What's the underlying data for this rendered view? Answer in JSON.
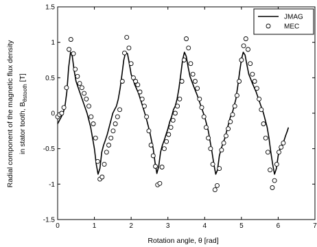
{
  "chart_data": {
    "type": "line",
    "xlabel": "Rotation angle, θ [rad]",
    "ylabel_line1": "Radial component of the magnetic flux density",
    "ylabel_line2_prefix": "in stator tooth, B",
    "ylabel_subscript": "θstooth",
    "ylabel_suffix": " [T]",
    "xlim": [
      0,
      7
    ],
    "ylim": [
      -1.5,
      1.5
    ],
    "xticks": [
      0,
      1,
      2,
      3,
      4,
      5,
      6,
      7
    ],
    "yticks": [
      -1.5,
      -1,
      -0.5,
      0,
      0.5,
      1,
      1.5
    ],
    "xtick_labels": [
      "0",
      "1",
      "2",
      "3",
      "4",
      "5",
      "6",
      "7"
    ],
    "ytick_labels": [
      "-1.5",
      "-1",
      "-0.5",
      "0",
      "0.5",
      "1",
      "1.5"
    ],
    "grid": false,
    "legend_position": "top-right",
    "series": [
      {
        "name": "JMAG",
        "style": "solid-line",
        "color": "#000000",
        "x": [
          0,
          0.05,
          0.1,
          0.15,
          0.2,
          0.25,
          0.3,
          0.35,
          0.4,
          0.45,
          0.5,
          0.6,
          0.7,
          0.8,
          0.9,
          1.0,
          1.05,
          1.1,
          1.15,
          1.2,
          1.25,
          1.3,
          1.35,
          1.4,
          1.45,
          1.5,
          1.55,
          1.6,
          1.65,
          1.7,
          1.75,
          1.8,
          1.85,
          1.9,
          1.95,
          2.0,
          2.05,
          2.1,
          2.2,
          2.3,
          2.4,
          2.5,
          2.6,
          2.65,
          2.7,
          2.75,
          2.8,
          2.85,
          2.9,
          2.95,
          3.0,
          3.05,
          3.1,
          3.15,
          3.2,
          3.25,
          3.3,
          3.35,
          3.4,
          3.45,
          3.5,
          3.55,
          3.6,
          3.7,
          3.8,
          3.9,
          4.0,
          4.1,
          4.15,
          4.2,
          4.25,
          4.3,
          4.35,
          4.4,
          4.45,
          4.5,
          4.55,
          4.6,
          4.65,
          4.7,
          4.75,
          4.8,
          4.85,
          4.9,
          4.95,
          5.0,
          5.05,
          5.1,
          5.15,
          5.2,
          5.3,
          5.4,
          5.5,
          5.6,
          5.7,
          5.75,
          5.8,
          5.85,
          5.9,
          5.95,
          6.0,
          6.05,
          6.1,
          6.15,
          6.2,
          6.25,
          6.28
        ],
        "y": [
          -0.15,
          -0.1,
          -0.05,
          0.0,
          0.1,
          0.3,
          0.65,
          0.86,
          0.8,
          0.6,
          0.45,
          0.3,
          0.15,
          0.0,
          -0.2,
          -0.5,
          -0.72,
          -0.86,
          -0.78,
          -0.55,
          -0.45,
          -0.38,
          -0.3,
          -0.2,
          -0.1,
          0.0,
          0.05,
          0.1,
          0.2,
          0.35,
          0.55,
          0.75,
          0.86,
          0.84,
          0.7,
          0.55,
          0.48,
          0.4,
          0.28,
          0.12,
          -0.05,
          -0.25,
          -0.5,
          -0.7,
          -0.85,
          -0.75,
          -0.55,
          -0.45,
          -0.38,
          -0.3,
          -0.22,
          -0.12,
          -0.05,
          0.05,
          0.1,
          0.2,
          0.35,
          0.55,
          0.75,
          0.86,
          0.8,
          0.65,
          0.52,
          0.38,
          0.25,
          0.1,
          -0.05,
          -0.25,
          -0.4,
          -0.55,
          -0.72,
          -0.86,
          -0.8,
          -0.6,
          -0.5,
          -0.42,
          -0.35,
          -0.25,
          -0.15,
          -0.05,
          0.0,
          0.1,
          0.2,
          0.38,
          0.58,
          0.76,
          0.86,
          0.82,
          0.68,
          0.55,
          0.42,
          0.3,
          0.15,
          0.0,
          -0.2,
          -0.35,
          -0.55,
          -0.72,
          -0.86,
          -0.78,
          -0.6,
          -0.5,
          -0.45,
          -0.4,
          -0.32,
          -0.25,
          -0.2
        ]
      },
      {
        "name": "MEC",
        "style": "open-circle",
        "color": "#000000",
        "x": [
          0.0,
          0.05,
          0.11,
          0.17,
          0.24,
          0.31,
          0.36,
          0.43,
          0.48,
          0.54,
          0.6,
          0.66,
          0.72,
          0.78,
          0.85,
          0.91,
          0.97,
          1.03,
          1.09,
          1.15,
          1.21,
          1.27,
          1.33,
          1.39,
          1.45,
          1.51,
          1.57,
          1.63,
          1.69,
          1.76,
          1.82,
          1.88,
          1.94,
          2.0,
          2.06,
          2.12,
          2.18,
          2.24,
          2.3,
          2.36,
          2.42,
          2.48,
          2.54,
          2.6,
          2.66,
          2.72,
          2.78,
          2.84,
          2.9,
          2.96,
          3.02,
          3.08,
          3.14,
          3.2,
          3.26,
          3.32,
          3.38,
          3.44,
          3.5,
          3.56,
          3.62,
          3.68,
          3.74,
          3.8,
          3.86,
          3.92,
          3.98,
          4.04,
          4.1,
          4.16,
          4.22,
          4.28,
          4.34,
          4.4,
          4.46,
          4.52,
          4.58,
          4.64,
          4.7,
          4.76,
          4.82,
          4.88,
          4.94,
          5.0,
          5.06,
          5.12,
          5.18,
          5.24,
          5.3,
          5.36,
          5.42,
          5.48,
          5.54,
          5.6,
          5.66,
          5.72,
          5.78,
          5.84,
          5.9,
          5.96,
          6.02,
          6.08,
          6.14
        ],
        "y": [
          -0.05,
          -0.02,
          0.0,
          0.08,
          0.36,
          0.9,
          1.04,
          0.84,
          0.62,
          0.52,
          0.42,
          0.36,
          0.28,
          0.2,
          0.1,
          -0.05,
          -0.15,
          -0.35,
          -0.68,
          -0.93,
          -0.9,
          -0.72,
          -0.55,
          -0.45,
          -0.35,
          -0.25,
          -0.15,
          -0.05,
          0.05,
          0.45,
          0.85,
          1.07,
          0.92,
          0.7,
          0.5,
          0.45,
          0.4,
          0.3,
          0.2,
          0.1,
          -0.05,
          -0.25,
          -0.45,
          -0.6,
          -0.75,
          -1.01,
          -0.99,
          -0.76,
          -0.5,
          -0.4,
          -0.3,
          -0.2,
          -0.1,
          0.0,
          0.1,
          0.2,
          0.45,
          0.75,
          1.05,
          0.92,
          0.7,
          0.55,
          0.45,
          0.35,
          0.2,
          0.08,
          -0.05,
          -0.2,
          -0.35,
          -0.5,
          -0.72,
          -1.08,
          -1.02,
          -0.78,
          -0.52,
          -0.42,
          -0.32,
          -0.22,
          -0.12,
          -0.02,
          0.1,
          0.25,
          0.45,
          0.75,
          0.95,
          1.05,
          0.9,
          0.7,
          0.55,
          0.45,
          0.35,
          0.2,
          0.05,
          -0.15,
          -0.35,
          -0.55,
          -0.8,
          -1.05,
          -0.95,
          -0.72,
          -0.55,
          -0.48,
          -0.42
        ]
      }
    ],
    "legend": [
      {
        "label": "JMAG",
        "marker": "line"
      },
      {
        "label": "MEC",
        "marker": "circle"
      }
    ]
  }
}
